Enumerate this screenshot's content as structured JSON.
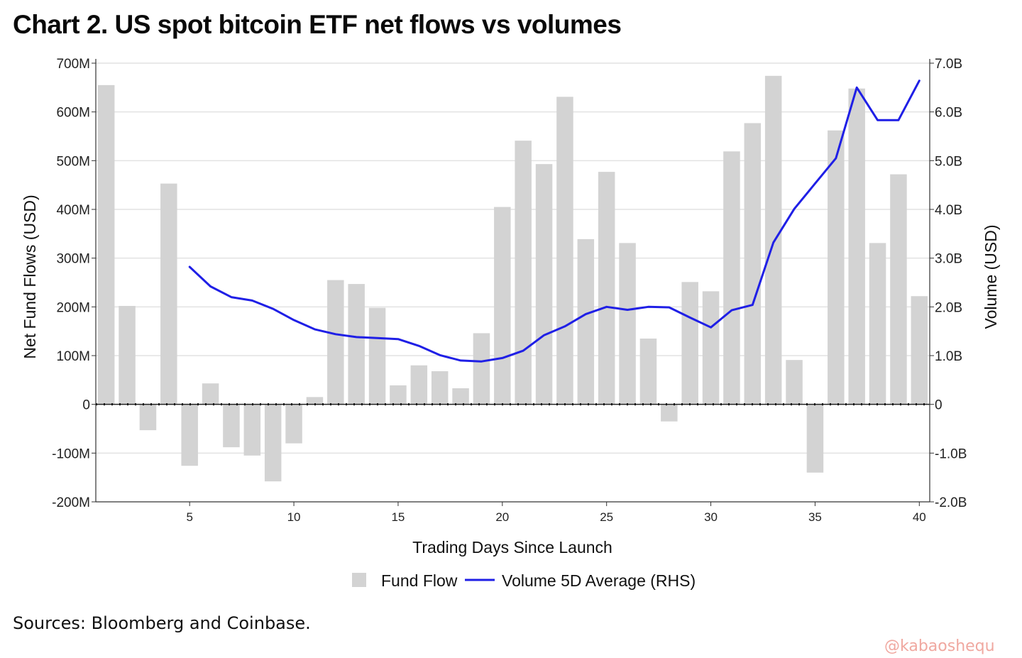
{
  "title": "Chart 2. US spot bitcoin ETF net flows vs volumes",
  "source": "Sources: Bloomberg and Coinbase.",
  "watermark": "@kabaoshequ",
  "colors": {
    "bar": "#d3d3d3",
    "line": "#1f1fe6",
    "grid": "#e2e2e2",
    "axis": "#333333"
  },
  "chart_data": {
    "type": "bar+line",
    "x_label": "Trading Days Since Launch",
    "y_left_label": "Net Fund Flows (USD)",
    "y_right_label": "Volume (USD)",
    "x_ticks": [
      5,
      10,
      15,
      20,
      25,
      30,
      35,
      40
    ],
    "x_range": [
      1,
      40
    ],
    "y_left_range": [
      -200,
      700
    ],
    "y_left_ticks": [
      {
        "value": 700,
        "label": "700M"
      },
      {
        "value": 600,
        "label": "600M"
      },
      {
        "value": 500,
        "label": "500M"
      },
      {
        "value": 400,
        "label": "400M"
      },
      {
        "value": 300,
        "label": "300M"
      },
      {
        "value": 200,
        "label": "200M"
      },
      {
        "value": 100,
        "label": "100M"
      },
      {
        "value": 0,
        "label": "0"
      },
      {
        "value": -100,
        "label": "-100M"
      },
      {
        "value": -200,
        "label": "-200M"
      }
    ],
    "y_right_range": [
      -2.0,
      7.0
    ],
    "y_right_ticks": [
      {
        "value": 7.0,
        "label": "7.0B"
      },
      {
        "value": 6.0,
        "label": "6.0B"
      },
      {
        "value": 5.0,
        "label": "5.0B"
      },
      {
        "value": 4.0,
        "label": "4.0B"
      },
      {
        "value": 3.0,
        "label": "3.0B"
      },
      {
        "value": 2.0,
        "label": "2.0B"
      },
      {
        "value": 1.0,
        "label": "1.0B"
      },
      {
        "value": 0,
        "label": "0"
      },
      {
        "value": -1.0,
        "label": "-1.0B"
      },
      {
        "value": -2.0,
        "label": "-2.0B"
      }
    ],
    "grid": true,
    "legend_position": "bottom",
    "series": [
      {
        "name": "Fund Flow",
        "type": "bar",
        "axis": "left",
        "x": [
          1,
          2,
          3,
          4,
          5,
          6,
          7,
          8,
          9,
          10,
          11,
          12,
          13,
          14,
          15,
          16,
          17,
          18,
          19,
          20,
          21,
          22,
          23,
          24,
          25,
          26,
          27,
          28,
          29,
          30,
          31,
          32,
          33,
          34,
          35,
          36,
          37,
          38,
          39,
          40
        ],
        "values": [
          655,
          202,
          -53,
          453,
          -126,
          43,
          -88,
          -105,
          -158,
          -80,
          15,
          255,
          247,
          198,
          39,
          80,
          68,
          33,
          146,
          405,
          541,
          493,
          631,
          339,
          477,
          331,
          135,
          -35,
          251,
          232,
          519,
          577,
          674,
          91,
          -140,
          562,
          648,
          331,
          472,
          222
        ]
      },
      {
        "name": "Volume 5D Average (RHS)",
        "type": "line",
        "axis": "right",
        "x": [
          5,
          6,
          7,
          8,
          9,
          10,
          11,
          12,
          13,
          14,
          15,
          16,
          17,
          18,
          19,
          20,
          21,
          22,
          23,
          24,
          25,
          26,
          27,
          28,
          29,
          30,
          31,
          32,
          33,
          34,
          35,
          36,
          37,
          38,
          39,
          40
        ],
        "values": [
          2.82,
          2.42,
          2.2,
          2.13,
          1.96,
          1.73,
          1.54,
          1.44,
          1.38,
          1.36,
          1.34,
          1.2,
          1.01,
          0.9,
          0.88,
          0.95,
          1.1,
          1.42,
          1.6,
          1.85,
          2.0,
          1.94,
          2.0,
          1.99,
          1.78,
          1.58,
          1.93,
          2.04,
          3.32,
          4.01,
          4.53,
          5.05,
          6.5,
          5.83,
          5.83,
          6.64
        ]
      }
    ]
  }
}
